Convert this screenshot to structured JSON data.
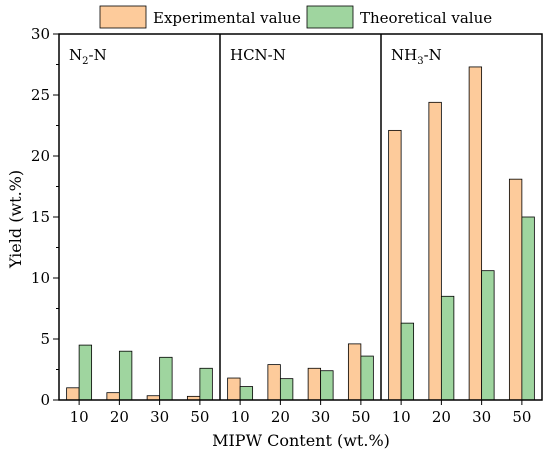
{
  "chart_data": {
    "type": "bar",
    "xlabel": "MIPW Content (wt.%)",
    "ylabel": "Yield (wt.%)",
    "ylim": [
      0,
      30
    ],
    "yticks": [
      0,
      5,
      10,
      15,
      20,
      25,
      30
    ],
    "legend_position": "top",
    "panels": [
      {
        "label_main": "N",
        "label_sub": "2",
        "label_suffix": "-N",
        "categories": [
          "10",
          "20",
          "30",
          "50"
        ],
        "series": [
          {
            "name": "Experimental value",
            "values": [
              1.0,
              0.6,
              0.35,
              0.3
            ]
          },
          {
            "name": "Theoretical value",
            "values": [
              4.5,
              4.0,
              3.5,
              2.6
            ]
          }
        ]
      },
      {
        "label_main": "HCN-N",
        "label_sub": "",
        "label_suffix": "",
        "categories": [
          "10",
          "20",
          "30",
          "50"
        ],
        "series": [
          {
            "name": "Experimental value",
            "values": [
              1.8,
              2.9,
              2.6,
              4.6
            ]
          },
          {
            "name": "Theoretical value",
            "values": [
              1.1,
              1.75,
              2.4,
              3.6
            ]
          }
        ]
      },
      {
        "label_main": "NH",
        "label_sub": "3",
        "label_suffix": "-N",
        "categories": [
          "10",
          "20",
          "30",
          "50"
        ],
        "series": [
          {
            "name": "Experimental value",
            "values": [
              22.1,
              24.4,
              27.3,
              18.1
            ]
          },
          {
            "name": "Theoretical value",
            "values": [
              6.3,
              8.5,
              10.6,
              15.0
            ]
          }
        ]
      }
    ],
    "legend": [
      {
        "name": "Experimental value",
        "color": "#fdcb9b"
      },
      {
        "name": "Theoretical value",
        "color": "#9fd59f"
      }
    ]
  }
}
